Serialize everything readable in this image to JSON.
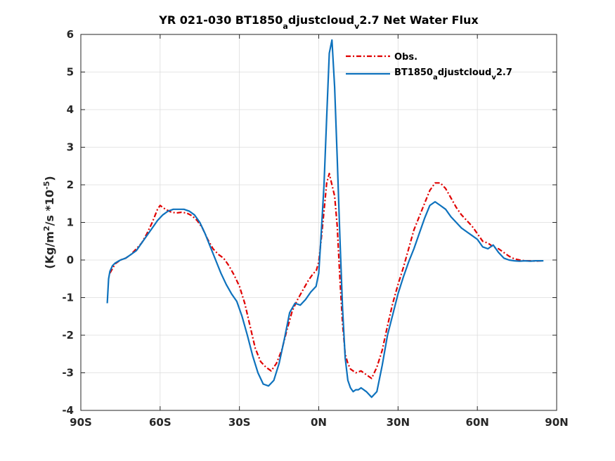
{
  "chart_data": {
    "type": "line",
    "title": {
      "prefix": "YR 021-030 BT1850",
      "sub1": "a",
      "middle": "djustcloud",
      "sub2": "v",
      "suffix": "2.7  Net Water Flux"
    },
    "ylabel": {
      "part1": "(Kg/m",
      "sup1": "2",
      "part2": "/s *10",
      "sup2": "-5",
      "part3": ")"
    },
    "xlabel": "",
    "xlim": [
      -90,
      90
    ],
    "ylim": [
      -4,
      6
    ],
    "x_ticks": [
      -90,
      -60,
      -30,
      0,
      30,
      60,
      90
    ],
    "x_tick_labels": [
      "90S",
      "60S",
      "30S",
      "0N",
      "30N",
      "60N",
      "90N"
    ],
    "y_ticks": [
      -4,
      -3,
      -2,
      -1,
      0,
      1,
      2,
      3,
      4,
      5,
      6
    ],
    "y_tick_labels": [
      "-4",
      "-3",
      "-2",
      "-1",
      "0",
      "1",
      "2",
      "3",
      "4",
      "5",
      "6"
    ],
    "grid": true,
    "legend_position": "top-right",
    "series": [
      {
        "name": "Obs.",
        "color": "#e00000",
        "dash": true,
        "x": [
          -79,
          -77,
          -75,
          -73,
          -71,
          -69,
          -67,
          -65,
          -63,
          -61,
          -60,
          -58,
          -56,
          -54,
          -52,
          -50,
          -48,
          -46,
          -44,
          -42,
          -40,
          -38,
          -36,
          -34,
          -32,
          -30,
          -28,
          -26,
          -24,
          -22,
          -20,
          -18,
          -16,
          -14,
          -12,
          -10,
          -8,
          -6,
          -4,
          -2,
          -1,
          0,
          1,
          2,
          3,
          4,
          5,
          6,
          7,
          8,
          9,
          10,
          11,
          12,
          13,
          14,
          16,
          18,
          20,
          22,
          24,
          26,
          28,
          30,
          32,
          34,
          36,
          38,
          40,
          42,
          44,
          46,
          48,
          50,
          52,
          54,
          56,
          58,
          60,
          62,
          64,
          66,
          68,
          70,
          72,
          74,
          76,
          78,
          80,
          82,
          84,
          85
        ],
        "y": [
          -0.35,
          -0.1,
          0.0,
          0.05,
          0.15,
          0.3,
          0.45,
          0.7,
          1.0,
          1.35,
          1.45,
          1.35,
          1.28,
          1.25,
          1.27,
          1.25,
          1.18,
          1.05,
          0.85,
          0.55,
          0.3,
          0.15,
          0.05,
          -0.15,
          -0.4,
          -0.7,
          -1.15,
          -1.75,
          -2.35,
          -2.7,
          -2.85,
          -2.95,
          -2.75,
          -2.4,
          -1.85,
          -1.35,
          -1.05,
          -0.8,
          -0.55,
          -0.35,
          -0.3,
          -0.05,
          0.6,
          1.3,
          2.05,
          2.3,
          2.0,
          1.7,
          0.9,
          -0.5,
          -1.7,
          -2.5,
          -2.75,
          -2.9,
          -2.95,
          -3.0,
          -2.95,
          -3.05,
          -3.15,
          -2.85,
          -2.4,
          -1.75,
          -1.15,
          -0.65,
          -0.2,
          0.3,
          0.8,
          1.15,
          1.5,
          1.85,
          2.05,
          2.05,
          1.9,
          1.65,
          1.4,
          1.2,
          1.05,
          0.9,
          0.7,
          0.5,
          0.45,
          0.35,
          0.3,
          0.2,
          0.1,
          0.03,
          0.0,
          -0.02,
          -0.02,
          -0.03,
          -0.02,
          -0.02
        ]
      },
      {
        "name": {
          "prefix": "BT1850",
          "sub1": "a",
          "middle": "djustcloud",
          "sub2": "v",
          "suffix": "2.7"
        },
        "color": "#0e72bd",
        "dash": false,
        "x": [
          -80,
          -79.5,
          -79,
          -78,
          -77,
          -75,
          -73,
          -71,
          -69,
          -67,
          -65,
          -63,
          -61,
          -59,
          -57,
          -55,
          -53,
          -51,
          -49,
          -47,
          -45,
          -43,
          -41,
          -39,
          -37,
          -35,
          -33,
          -31,
          -29,
          -27,
          -25,
          -23,
          -21,
          -19,
          -17,
          -15,
          -13,
          -11,
          -9,
          -7,
          -5,
          -3,
          -1,
          0,
          1,
          2,
          3,
          4,
          5,
          6,
          7,
          8,
          9,
          10,
          11,
          12,
          13,
          14,
          15,
          16,
          18,
          20,
          22,
          24,
          26,
          28,
          30,
          32,
          34,
          36,
          38,
          40,
          42,
          44,
          46,
          48,
          50,
          52,
          54,
          56,
          58,
          60,
          62,
          64,
          66,
          68,
          70,
          72,
          74,
          76,
          78,
          80,
          82,
          84,
          85
        ],
        "y": [
          -1.15,
          -0.5,
          -0.3,
          -0.15,
          -0.08,
          0.0,
          0.05,
          0.15,
          0.25,
          0.45,
          0.65,
          0.85,
          1.05,
          1.2,
          1.3,
          1.35,
          1.35,
          1.35,
          1.3,
          1.2,
          1.0,
          0.7,
          0.35,
          0.0,
          -0.35,
          -0.65,
          -0.9,
          -1.1,
          -1.5,
          -2.0,
          -2.55,
          -3.0,
          -3.3,
          -3.35,
          -3.2,
          -2.75,
          -2.1,
          -1.4,
          -1.15,
          -1.2,
          -1.05,
          -0.85,
          -0.7,
          -0.35,
          0.8,
          2.0,
          3.8,
          5.5,
          5.85,
          4.6,
          2.7,
          0.6,
          -1.3,
          -2.6,
          -3.2,
          -3.4,
          -3.5,
          -3.45,
          -3.45,
          -3.4,
          -3.5,
          -3.65,
          -3.5,
          -2.8,
          -2.0,
          -1.45,
          -0.9,
          -0.45,
          -0.05,
          0.3,
          0.7,
          1.1,
          1.45,
          1.55,
          1.45,
          1.35,
          1.15,
          1.0,
          0.85,
          0.75,
          0.65,
          0.55,
          0.35,
          0.3,
          0.4,
          0.2,
          0.05,
          0.0,
          -0.02,
          -0.03,
          -0.02,
          -0.03,
          -0.02,
          -0.02,
          -0.02
        ]
      }
    ]
  }
}
